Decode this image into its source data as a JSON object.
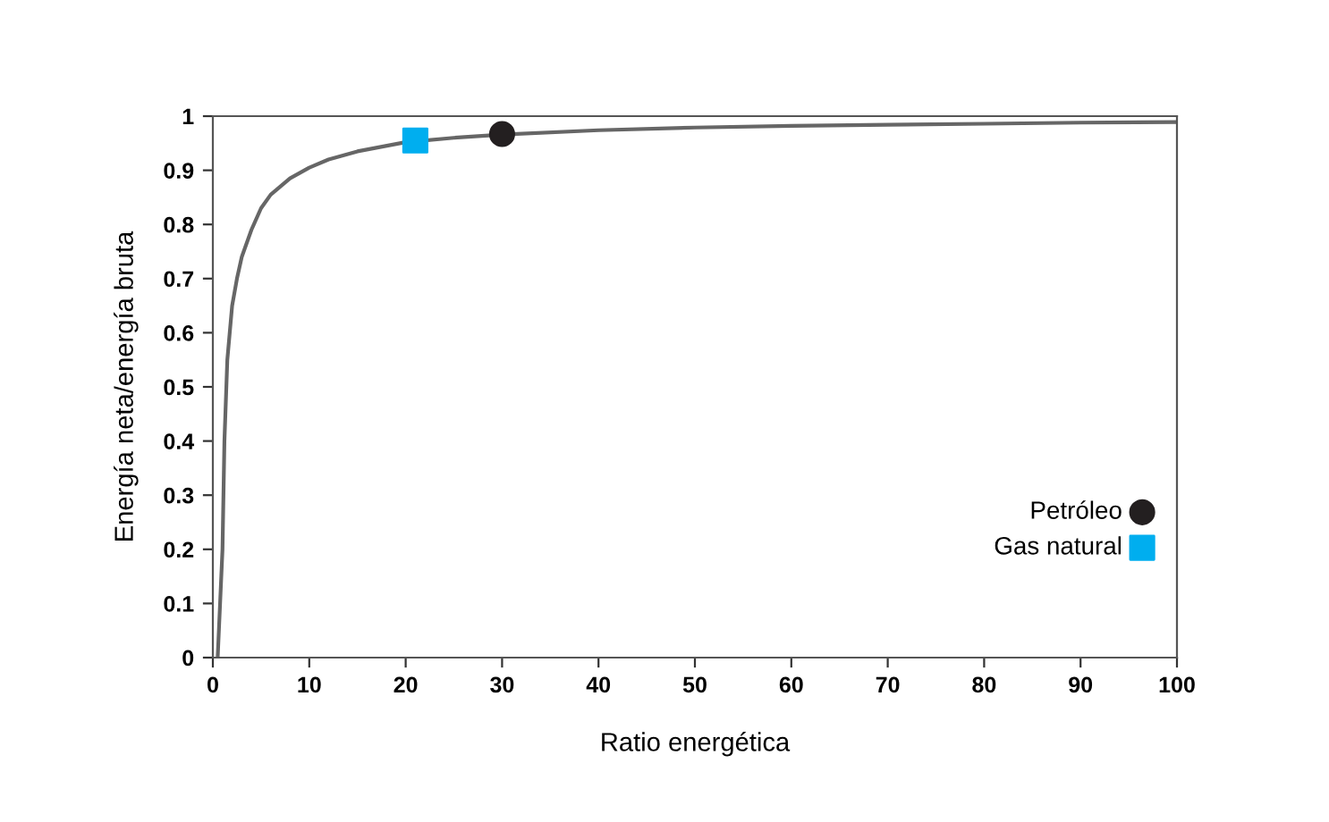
{
  "chart_data": {
    "type": "line",
    "xlabel": "Ratio energética",
    "ylabel": "Energía neta/energía bruta",
    "xlim": [
      0,
      100
    ],
    "ylim": [
      0,
      1
    ],
    "xticks": [
      0,
      10,
      20,
      30,
      40,
      50,
      60,
      70,
      80,
      90,
      100
    ],
    "yticks": [
      0,
      0.1,
      0.2,
      0.3,
      0.4,
      0.5,
      0.6,
      0.7,
      0.8,
      0.9,
      1
    ],
    "grid": false,
    "legend": "right",
    "series": [
      {
        "color": "#666666",
        "marker": "none",
        "x": [
          0.5,
          1,
          1.2,
          1.5,
          2,
          2.5,
          3,
          4,
          5,
          6,
          8,
          10,
          12,
          15,
          20,
          25,
          30,
          40,
          50,
          60,
          70,
          80,
          90,
          100
        ],
        "values": [
          0,
          0.2,
          0.4,
          0.55,
          0.65,
          0.7,
          0.74,
          0.79,
          0.83,
          0.855,
          0.885,
          0.905,
          0.92,
          0.935,
          0.952,
          0.96,
          0.966,
          0.974,
          0.979,
          0.982,
          0.984,
          0.986,
          0.988,
          0.989
        ]
      },
      {
        "type": "scatter",
        "name": "Petróleo",
        "color": "#231f20",
        "marker": "circle",
        "x": [
          30
        ],
        "values": [
          0.967
        ]
      },
      {
        "type": "scatter",
        "name": "Gas natural",
        "color": "#00aeef",
        "marker": "square",
        "x": [
          21
        ],
        "values": [
          0.955
        ]
      }
    ]
  }
}
